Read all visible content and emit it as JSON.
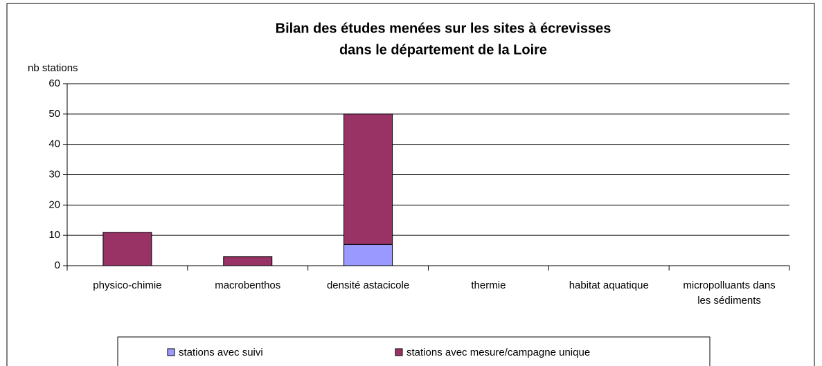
{
  "chart_data": {
    "type": "bar",
    "stacked": true,
    "title": [
      "Bilan des études menées sur les sites à écrevisses",
      "dans le département de la Loire"
    ],
    "ylabel": "nb stations",
    "categories": [
      "physico-chimie",
      "macrobenthos",
      "densité astacicole",
      "thermie",
      "habitat aquatique",
      "micropolluants dans les sédiments"
    ],
    "series": [
      {
        "name": "stations avec suivi",
        "color": "#9999ff",
        "values": [
          0,
          0,
          7,
          0,
          0,
          0
        ]
      },
      {
        "name": "stations avec mesure/campagne unique",
        "color": "#993366",
        "values": [
          11,
          3,
          43,
          0,
          0,
          0
        ]
      }
    ],
    "ylim": [
      0,
      60
    ],
    "yticks": [
      0,
      10,
      20,
      30,
      40,
      50,
      60
    ],
    "grid": true,
    "legend": "bottom"
  }
}
